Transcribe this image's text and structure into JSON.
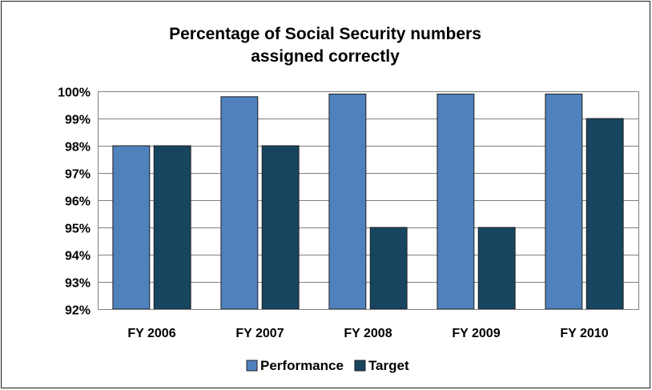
{
  "chart_data": {
    "type": "bar",
    "title": "Percentage of Social Security numbers assigned correctly",
    "title_lines": [
      "Percentage of Social Security numbers",
      "assigned correctly"
    ],
    "categories": [
      "FY 2006",
      "FY 2007",
      "FY 2008",
      "FY 2009",
      "FY 2010"
    ],
    "series": [
      {
        "name": "Performance",
        "color": "#4f81bd",
        "values": [
          98,
          99.8,
          99.9,
          99.9,
          99.9
        ]
      },
      {
        "name": "Target",
        "color": "#17455f",
        "values": [
          98,
          98,
          95,
          95,
          99
        ]
      }
    ],
    "ylim": [
      92,
      100
    ],
    "yticks": [
      92,
      93,
      94,
      95,
      96,
      97,
      98,
      99,
      100
    ],
    "ytick_labels": [
      "92%",
      "93%",
      "94%",
      "95%",
      "96%",
      "97%",
      "98%",
      "99%",
      "100%"
    ],
    "xlabel": "",
    "ylabel": "",
    "grid": true,
    "legend_position": "bottom"
  }
}
